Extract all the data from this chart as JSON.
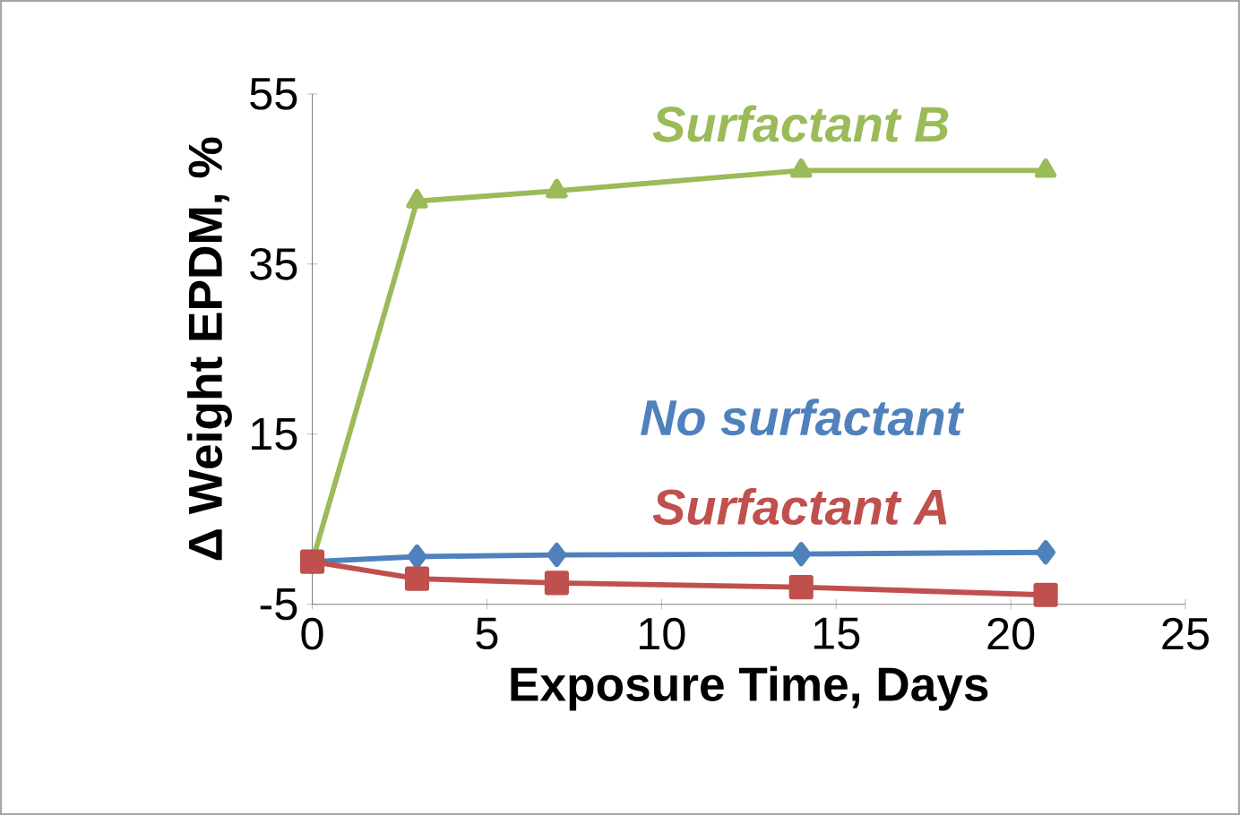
{
  "chart_data": {
    "type": "line",
    "xlabel": "Exposure Time, Days",
    "ylabel": "Δ Weight EPDM, %",
    "x": [
      0,
      3,
      7,
      14,
      21
    ],
    "xlim": [
      0,
      25
    ],
    "xticks": [
      0,
      5,
      10,
      15,
      20,
      25
    ],
    "ylim": [
      -5,
      55
    ],
    "yticks": [
      -5,
      15,
      35,
      55
    ],
    "series": [
      {
        "name": "Surfactant B",
        "color": "#9bbb59",
        "marker": "triangle",
        "values": [
          0,
          42.4,
          43.6,
          46.0,
          46.0
        ]
      },
      {
        "name": "No surfactant",
        "color": "#4f81bd",
        "marker": "diamond",
        "values": [
          0,
          0.6,
          0.8,
          0.9,
          1.1
        ]
      },
      {
        "name": "Surfactant A",
        "color": "#c0504d",
        "marker": "square",
        "values": [
          0,
          -2.0,
          -2.5,
          -3.0,
          -3.9
        ]
      }
    ]
  }
}
